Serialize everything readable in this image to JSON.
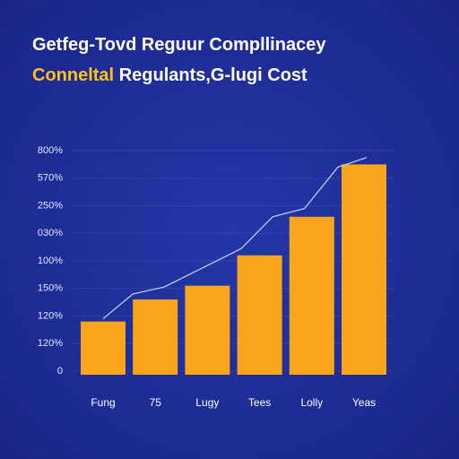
{
  "chart_data": {
    "type": "bar",
    "title": "Getfeg-Tovd Reguur Compllinacey",
    "subtitle_highlight": "Conneltal",
    "subtitle": "Regulants,G-lugi Cost",
    "categories": [
      "Fung",
      "75",
      "Lugy",
      "Tees",
      "Lolly",
      "Yeas"
    ],
    "values": [
      1.8,
      2.6,
      3.1,
      4.2,
      5.6,
      7.5
    ],
    "color": "#f8a51c",
    "highlight_color": "#f8c21c",
    "line": {
      "color": "#c9d2f5",
      "x": [
        0,
        0.57,
        1.17,
        2.65,
        3.25,
        3.86,
        4.5,
        5.05
      ],
      "values": [
        1.9,
        2.8,
        3.05,
        4.45,
        5.6,
        5.9,
        7.4,
        7.75
      ]
    },
    "ylim": [
      0,
      8
    ],
    "yticks": [
      {
        "value": 0,
        "label": "0"
      },
      {
        "value": 1,
        "label": "120%"
      },
      {
        "value": 2,
        "label": "120%"
      },
      {
        "value": 3,
        "label": "150%"
      },
      {
        "value": 4,
        "label": "100%"
      },
      {
        "value": 5,
        "label": "030%"
      },
      {
        "value": 6,
        "label": "250%"
      },
      {
        "value": 7,
        "label": "570%"
      },
      {
        "value": 8,
        "label": "800%"
      }
    ],
    "grid": true
  }
}
